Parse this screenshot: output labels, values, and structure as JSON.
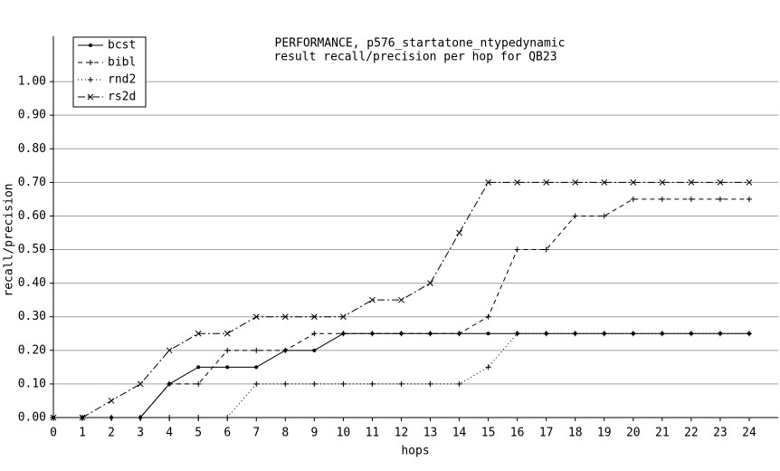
{
  "chart_data": {
    "type": "line",
    "title": "PERFORMANCE, p576_startatone_ntypedynamic",
    "subtitle": "result recall/precision per hop for QB23",
    "x_label": "hops",
    "y_label": "recall/precision",
    "x": [
      0,
      1,
      2,
      3,
      4,
      5,
      6,
      7,
      8,
      9,
      10,
      11,
      12,
      13,
      14,
      15,
      16,
      17,
      18,
      19,
      20,
      21,
      22,
      23,
      24
    ],
    "series": [
      {
        "name": "bcst",
        "color": "#000000",
        "dash": "none",
        "marker": "dot",
        "values": [
          0,
          0,
          0,
          0,
          0.1,
          0.15,
          0.15,
          0.15,
          0.2,
          0.2,
          0.25,
          0.25,
          0.25,
          0.25,
          0.25,
          0.25,
          0.25,
          0.25,
          0.25,
          0.25,
          0.25,
          0.25,
          0.25,
          0.25,
          0.25
        ]
      },
      {
        "name": "bibl",
        "color": "#000000",
        "dash": "5,4",
        "marker": "plus",
        "values": [
          0,
          0,
          0,
          0,
          0.1,
          0.1,
          0.2,
          0.2,
          0.2,
          0.25,
          0.25,
          0.25,
          0.25,
          0.25,
          0.25,
          0.3,
          0.5,
          0.5,
          0.6,
          0.6,
          0.65,
          0.65,
          0.65,
          0.65,
          0.65
        ]
      },
      {
        "name": "rnd2",
        "color": "#000000",
        "dash": "1,3",
        "marker": "plus",
        "values": [
          0,
          0,
          0,
          0,
          0,
          0,
          0,
          0.1,
          0.1,
          0.1,
          0.1,
          0.1,
          0.1,
          0.1,
          0.1,
          0.15,
          0.25,
          0.25,
          0.25,
          0.25,
          0.25,
          0.25,
          0.25,
          0.25,
          0.25
        ]
      },
      {
        "name": "rs2d",
        "color": "#000000",
        "dash": "8,3,2,3",
        "marker": "x",
        "values": [
          0,
          0,
          0.05,
          0.1,
          0.2,
          0.25,
          0.25,
          0.3,
          0.3,
          0.3,
          0.3,
          0.35,
          0.35,
          0.4,
          0.55,
          0.7,
          0.7,
          0.7,
          0.7,
          0.7,
          0.7,
          0.7,
          0.7,
          0.7,
          0.7
        ]
      }
    ],
    "xlim": [
      0,
      25
    ],
    "ylim": [
      0,
      1.135
    ],
    "xticks": [
      0,
      1,
      2,
      3,
      4,
      5,
      6,
      7,
      8,
      9,
      10,
      11,
      12,
      13,
      14,
      15,
      16,
      17,
      18,
      19,
      20,
      21,
      22,
      23,
      24
    ],
    "yticks": [
      {
        "value": 0,
        "label": "0.00"
      },
      {
        "value": 0.1,
        "label": "0.10"
      },
      {
        "value": 0.2,
        "label": "0.20"
      },
      {
        "value": 0.3,
        "label": "0.30"
      },
      {
        "value": 0.4,
        "label": "0.40"
      },
      {
        "value": 0.5,
        "label": "0.50"
      },
      {
        "value": 0.6,
        "label": "0.60"
      },
      {
        "value": 0.7,
        "label": "0.70"
      },
      {
        "value": 0.8,
        "label": "0.80"
      },
      {
        "value": 0.9,
        "label": "0.90"
      },
      {
        "value": 1,
        "label": "1.00"
      }
    ],
    "grid": true,
    "legend": "top-left"
  }
}
